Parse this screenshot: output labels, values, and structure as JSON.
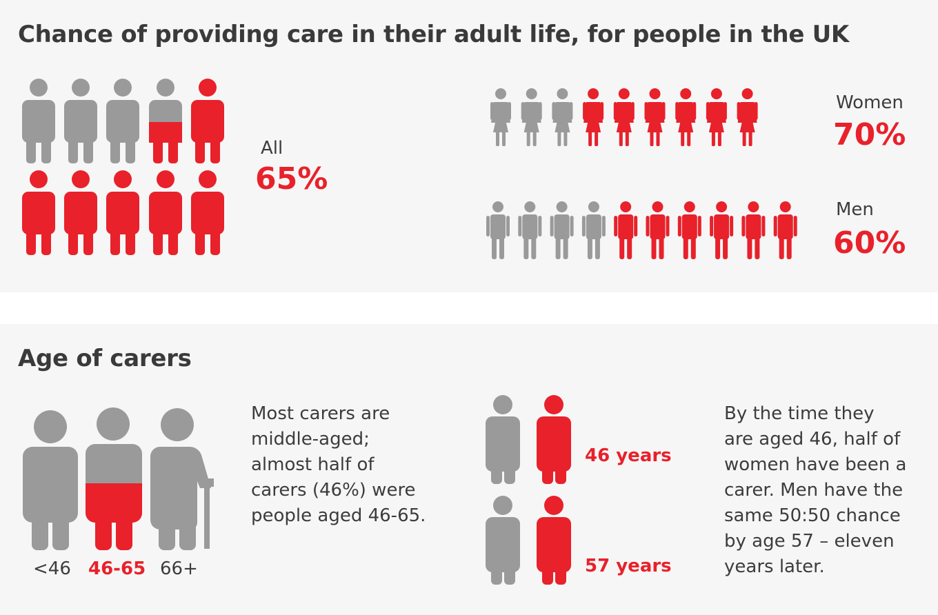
{
  "colors": {
    "accent": "#e8212b",
    "neutral": "#9a9a9a",
    "text": "#3c3c3c",
    "panel": "#f6f6f6"
  },
  "section_care": {
    "title": "Chance of providing care in their adult life, for people in the UK",
    "all": {
      "label": "All",
      "value": "65%",
      "fraction": 0.65,
      "icon_count": 10
    },
    "women": {
      "label": "Women",
      "value": "70%",
      "fraction": 0.7,
      "icon_count": 10
    },
    "men": {
      "label": "Men",
      "value": "60%",
      "fraction": 0.6,
      "icon_count": 10
    }
  },
  "section_age": {
    "title": "Age of carers",
    "groups": [
      {
        "label": "<46",
        "highlight": false,
        "icon": "adult-person-icon"
      },
      {
        "label": "46-65",
        "highlight": true,
        "fraction": 0.46,
        "icon": "middle-aged-person-icon"
      },
      {
        "label": "66+",
        "highlight": false,
        "icon": "elderly-person-with-cane-icon"
      }
    ],
    "description": "Most carers are\nmiddle-aged;\nalmost half of\ncarers (46%) were\npeople aged 46-65.",
    "comparisons": [
      {
        "label": "46 years"
      },
      {
        "label": "57 years"
      }
    ],
    "note": "By the time they\nare aged 46, half of\nwomen have been a\ncarer. Men have the\nsame 50:50 chance\nby age 57 – eleven\nyears later."
  }
}
